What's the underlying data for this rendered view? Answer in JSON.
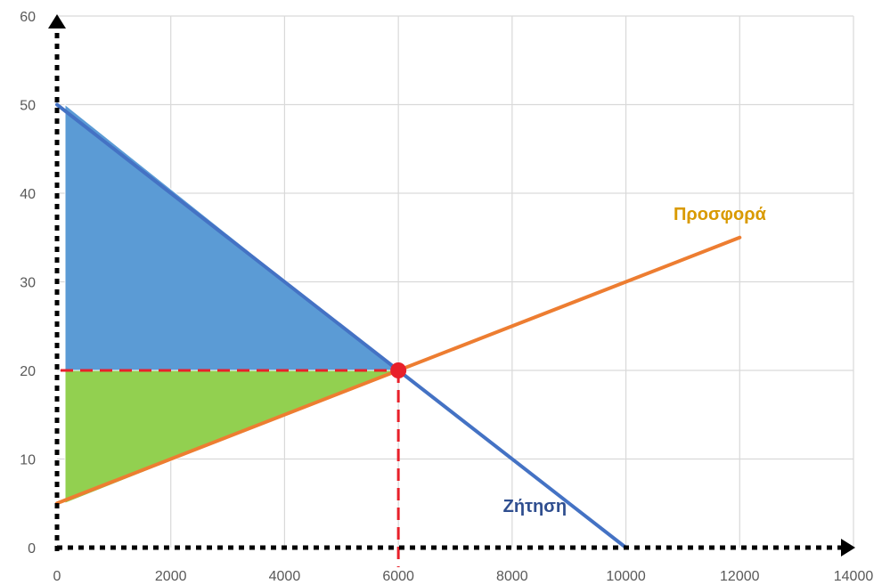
{
  "chart_data": {
    "type": "line",
    "xlim": [
      0,
      14000
    ],
    "ylim": [
      0,
      60
    ],
    "x_ticks": [
      0,
      2000,
      4000,
      6000,
      8000,
      10000,
      12000,
      14000
    ],
    "y_ticks": [
      0,
      10,
      20,
      30,
      40,
      50,
      60
    ],
    "x_tick_labels": [
      "0",
      "2000",
      "4000",
      "6000",
      "8000",
      "10000",
      "12000",
      "14000"
    ],
    "y_tick_labels": [
      "0",
      "10",
      "20",
      "30",
      "40",
      "50",
      "60"
    ],
    "grid": true,
    "series": [
      {
        "name": "Ζήτηση",
        "color": "#4472c4",
        "points": [
          [
            0,
            50
          ],
          [
            10000,
            0
          ]
        ]
      },
      {
        "name": "Προσφορά",
        "color": "#ed7d31",
        "points": [
          [
            0,
            5
          ],
          [
            12000,
            35
          ]
        ]
      }
    ],
    "series_labels": [
      {
        "text": "Ζήτηση",
        "color": "#2f4e8f",
        "at": [
          8400,
          4
        ]
      },
      {
        "text": "Προσφορά",
        "color": "#d99a00",
        "at": [
          11650,
          37
        ]
      }
    ],
    "equilibrium": {
      "x": 6000,
      "y": 20,
      "color": "#e8202a"
    },
    "shaded_regions": [
      {
        "name": "consumer-surplus",
        "color": "#5b9bd5",
        "points": [
          [
            0,
            50
          ],
          [
            6000,
            20
          ],
          [
            0,
            20
          ]
        ]
      },
      {
        "name": "producer-surplus",
        "color": "#92d050",
        "points": [
          [
            0,
            20
          ],
          [
            6000,
            20
          ],
          [
            0,
            5
          ]
        ]
      }
    ],
    "guide_lines": {
      "color": "#e8202a",
      "dashed": true
    }
  }
}
